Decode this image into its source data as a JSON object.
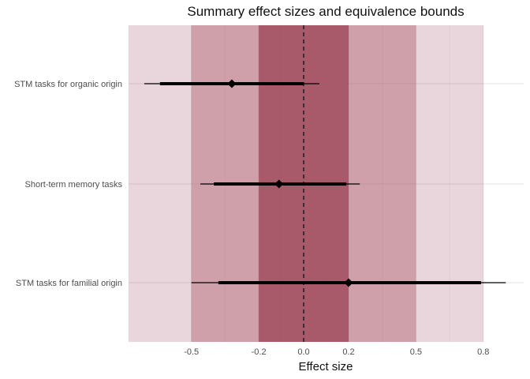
{
  "chart_data": {
    "type": "forest",
    "title": "Summary effect sizes and equivalence bounds",
    "xlabel": "Effect size",
    "ylabel": "",
    "xlim": [
      -0.78,
      0.98
    ],
    "x_ticks": [
      {
        "value": -0.5,
        "label": "-0.5"
      },
      {
        "value": -0.2,
        "label": "-0.2"
      },
      {
        "value": 0.0,
        "label": "0.0"
      },
      {
        "value": 0.2,
        "label": "0.2"
      },
      {
        "value": 0.5,
        "label": "0.5"
      },
      {
        "value": 0.8,
        "label": "0.8"
      }
    ],
    "reference_line": 0,
    "equivalence_bands": [
      {
        "lower": -0.8,
        "upper": 0.8,
        "color": "#e8d6dc"
      },
      {
        "lower": -0.5,
        "upper": 0.5,
        "color": "#cfa0aa"
      },
      {
        "lower": -0.2,
        "upper": 0.2,
        "color": "#a85a6b"
      }
    ],
    "grid": true,
    "rows": [
      {
        "label": "STM tasks for organic origin",
        "estimate": -0.32,
        "ci_inner": [
          -0.64,
          0.0
        ],
        "ci_outer": [
          -0.71,
          0.07
        ]
      },
      {
        "label": "Short-term memory tasks",
        "estimate": -0.11,
        "ci_inner": [
          -0.4,
          0.19
        ],
        "ci_outer": [
          -0.46,
          0.25
        ]
      },
      {
        "label": "STM tasks for familial origin",
        "estimate": 0.2,
        "ci_inner": [
          -0.38,
          0.79
        ],
        "ci_outer": [
          -0.5,
          0.9
        ]
      }
    ]
  }
}
